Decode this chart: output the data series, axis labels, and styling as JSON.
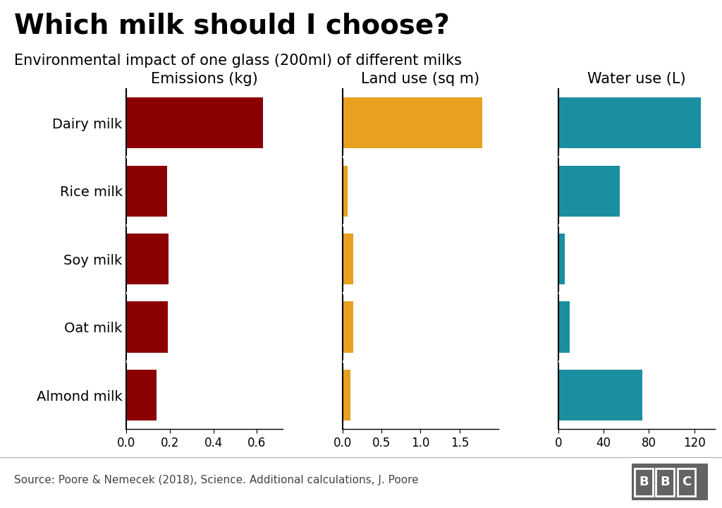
{
  "title": "Which milk should I choose?",
  "subtitle": "Environmental impact of one glass (200ml) of different milks",
  "categories": [
    "Dairy milk",
    "Rice milk",
    "Soy milk",
    "Oat milk",
    "Almond milk"
  ],
  "emissions": [
    0.628,
    0.188,
    0.195,
    0.19,
    0.14
  ],
  "land_use": [
    1.79,
    0.07,
    0.14,
    0.14,
    0.1
  ],
  "water_use": [
    125.6,
    54.0,
    5.6,
    9.8,
    74.3
  ],
  "emissions_color": "#8B0000",
  "land_use_color": "#E8A020",
  "water_use_color": "#1A8FA0",
  "emissions_label": "Emissions (kg)",
  "land_use_label": "Land use (sq m)",
  "water_use_label": "Water use (L)",
  "emissions_xlim": [
    0,
    0.72
  ],
  "land_use_xlim": [
    0,
    2.0
  ],
  "water_use_xlim": [
    0,
    138
  ],
  "emissions_xticks": [
    0.0,
    0.2,
    0.4,
    0.6
  ],
  "land_use_xticks": [
    0.0,
    0.5,
    1.0,
    1.5
  ],
  "water_use_xticks": [
    0,
    40,
    80,
    120
  ],
  "source_text": "Source: Poore & Nemecek (2018), Science. Additional calculations, J. Poore",
  "bbc_text": "BBC",
  "background_color": "#FFFFFF",
  "title_fontsize": 28,
  "subtitle_fontsize": 15,
  "label_fontsize": 15,
  "tick_fontsize": 12,
  "category_fontsize": 14,
  "source_fontsize": 11,
  "bar_height": 0.75
}
